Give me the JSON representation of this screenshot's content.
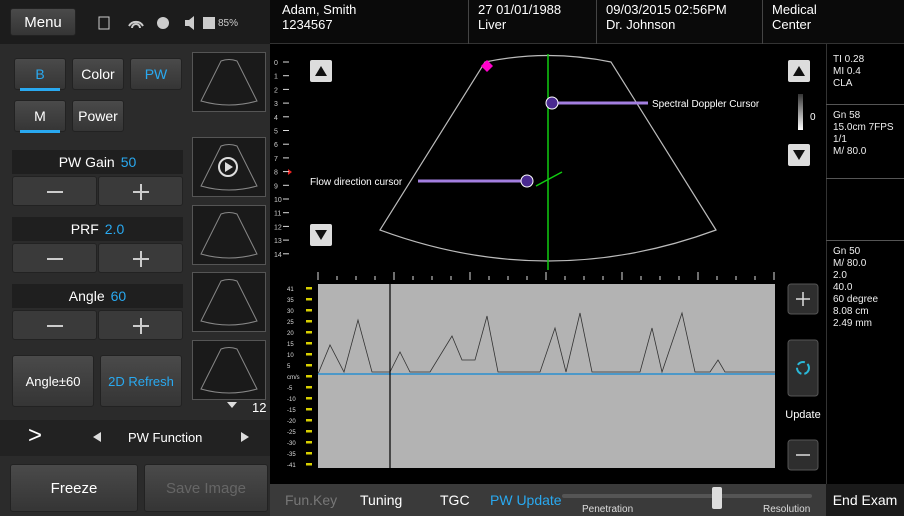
{
  "status": {
    "menu": "Menu",
    "battery": "85%"
  },
  "modes": [
    "B",
    "Color",
    "PW",
    "M",
    "Power"
  ],
  "controls": [
    {
      "label": "PW Gain",
      "value": "50"
    },
    {
      "label": "PRF",
      "value": "2.0"
    },
    {
      "label": "Angle",
      "value": "60"
    }
  ],
  "buttons": {
    "angle": "Angle±60",
    "refresh": "2D Refresh"
  },
  "thumbnails": {
    "count": "12"
  },
  "function": {
    "next": ">",
    "label": "PW Function"
  },
  "actions": {
    "freeze": "Freeze",
    "save": "Save Image"
  },
  "header": {
    "patient": "Adam, Smith",
    "id": "1234567",
    "age_dob": "27 01/01/1988",
    "exam": "Liver",
    "datetime": "09/03/2015 02:56PM",
    "doctor": "Dr. Johnson",
    "institution": [
      "Medical",
      "Center"
    ]
  },
  "image": {
    "depth_scale": [
      "0",
      "1",
      "2",
      "3",
      "4",
      "5",
      "6",
      "7",
      "8",
      "9",
      "10",
      "11",
      "12",
      "13",
      "14"
    ],
    "annotations": [
      "Spectral Doppler Cursor",
      "Flow direction cursor"
    ],
    "gain_level": "0"
  },
  "info": {
    "general": [
      "TI 0.28",
      "MI 0.4",
      "CLA"
    ],
    "b_mode": [
      "Gn 58",
      "15.0cm 7FPS",
      "1/1",
      "M/ 80.0"
    ],
    "pw": [
      "Gn 50",
      "M/ 80.0",
      "2.0",
      "40.0",
      "60 degree",
      "8.08 cm",
      "2.49 mm"
    ]
  },
  "spectrum": {
    "scale": [
      "41",
      "35",
      "30",
      "25",
      "20",
      "15",
      "10",
      "5",
      "cm/s",
      "-5",
      "-10",
      "-15",
      "-20",
      "-25",
      "-30",
      "-35",
      "-41"
    ],
    "update": "Update"
  },
  "bottom": {
    "tabs": [
      "Fun.Key",
      "Tuning",
      "TGC",
      "PW Update"
    ],
    "penetration": "Penetration",
    "resolution": "Resolution",
    "end": "End Exam"
  }
}
